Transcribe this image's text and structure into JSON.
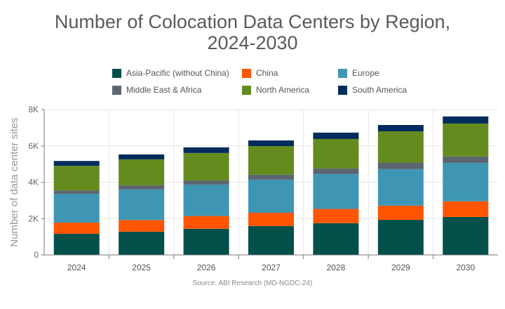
{
  "chart_data": {
    "type": "bar",
    "stacked": true,
    "title": "Number of Colocation Data Centers by Region, 2024-2030",
    "title_lines": [
      "Number of Colocation Data Centers by Region,",
      "2024-2030"
    ],
    "xlabel": "",
    "ylabel": "Number of data center sites",
    "ylim": [
      0,
      8000
    ],
    "yticks": [
      0,
      2000,
      4000,
      6000,
      8000
    ],
    "ytick_labels": [
      "0",
      "2K",
      "4K",
      "6K",
      "8K"
    ],
    "grid": true,
    "legend_position": "top",
    "categories": [
      "2024",
      "2025",
      "2026",
      "2027",
      "2028",
      "2029",
      "2030"
    ],
    "series": [
      {
        "name": "Asia-Pacific (without China)",
        "color": "#03504a",
        "values": [
          1160,
          1280,
          1440,
          1590,
          1750,
          1930,
          2090
        ]
      },
      {
        "name": "China",
        "color": "#ff5500",
        "values": [
          620,
          640,
          700,
          730,
          780,
          780,
          860
        ]
      },
      {
        "name": "Europe",
        "color": "#3f96b4",
        "values": [
          1580,
          1680,
          1730,
          1820,
          1920,
          2010,
          2110
        ]
      },
      {
        "name": "Middle East & Africa",
        "color": "#5c6670",
        "values": [
          190,
          230,
          230,
          270,
          310,
          360,
          360
        ]
      },
      {
        "name": "North America",
        "color": "#648b1d",
        "values": [
          1350,
          1430,
          1510,
          1580,
          1620,
          1720,
          1810
        ]
      },
      {
        "name": "South America",
        "color": "#002b5c",
        "values": [
          270,
          270,
          310,
          310,
          350,
          350,
          390
        ]
      }
    ],
    "source": "Source: ABI Research (MD-NGDC-24)"
  }
}
